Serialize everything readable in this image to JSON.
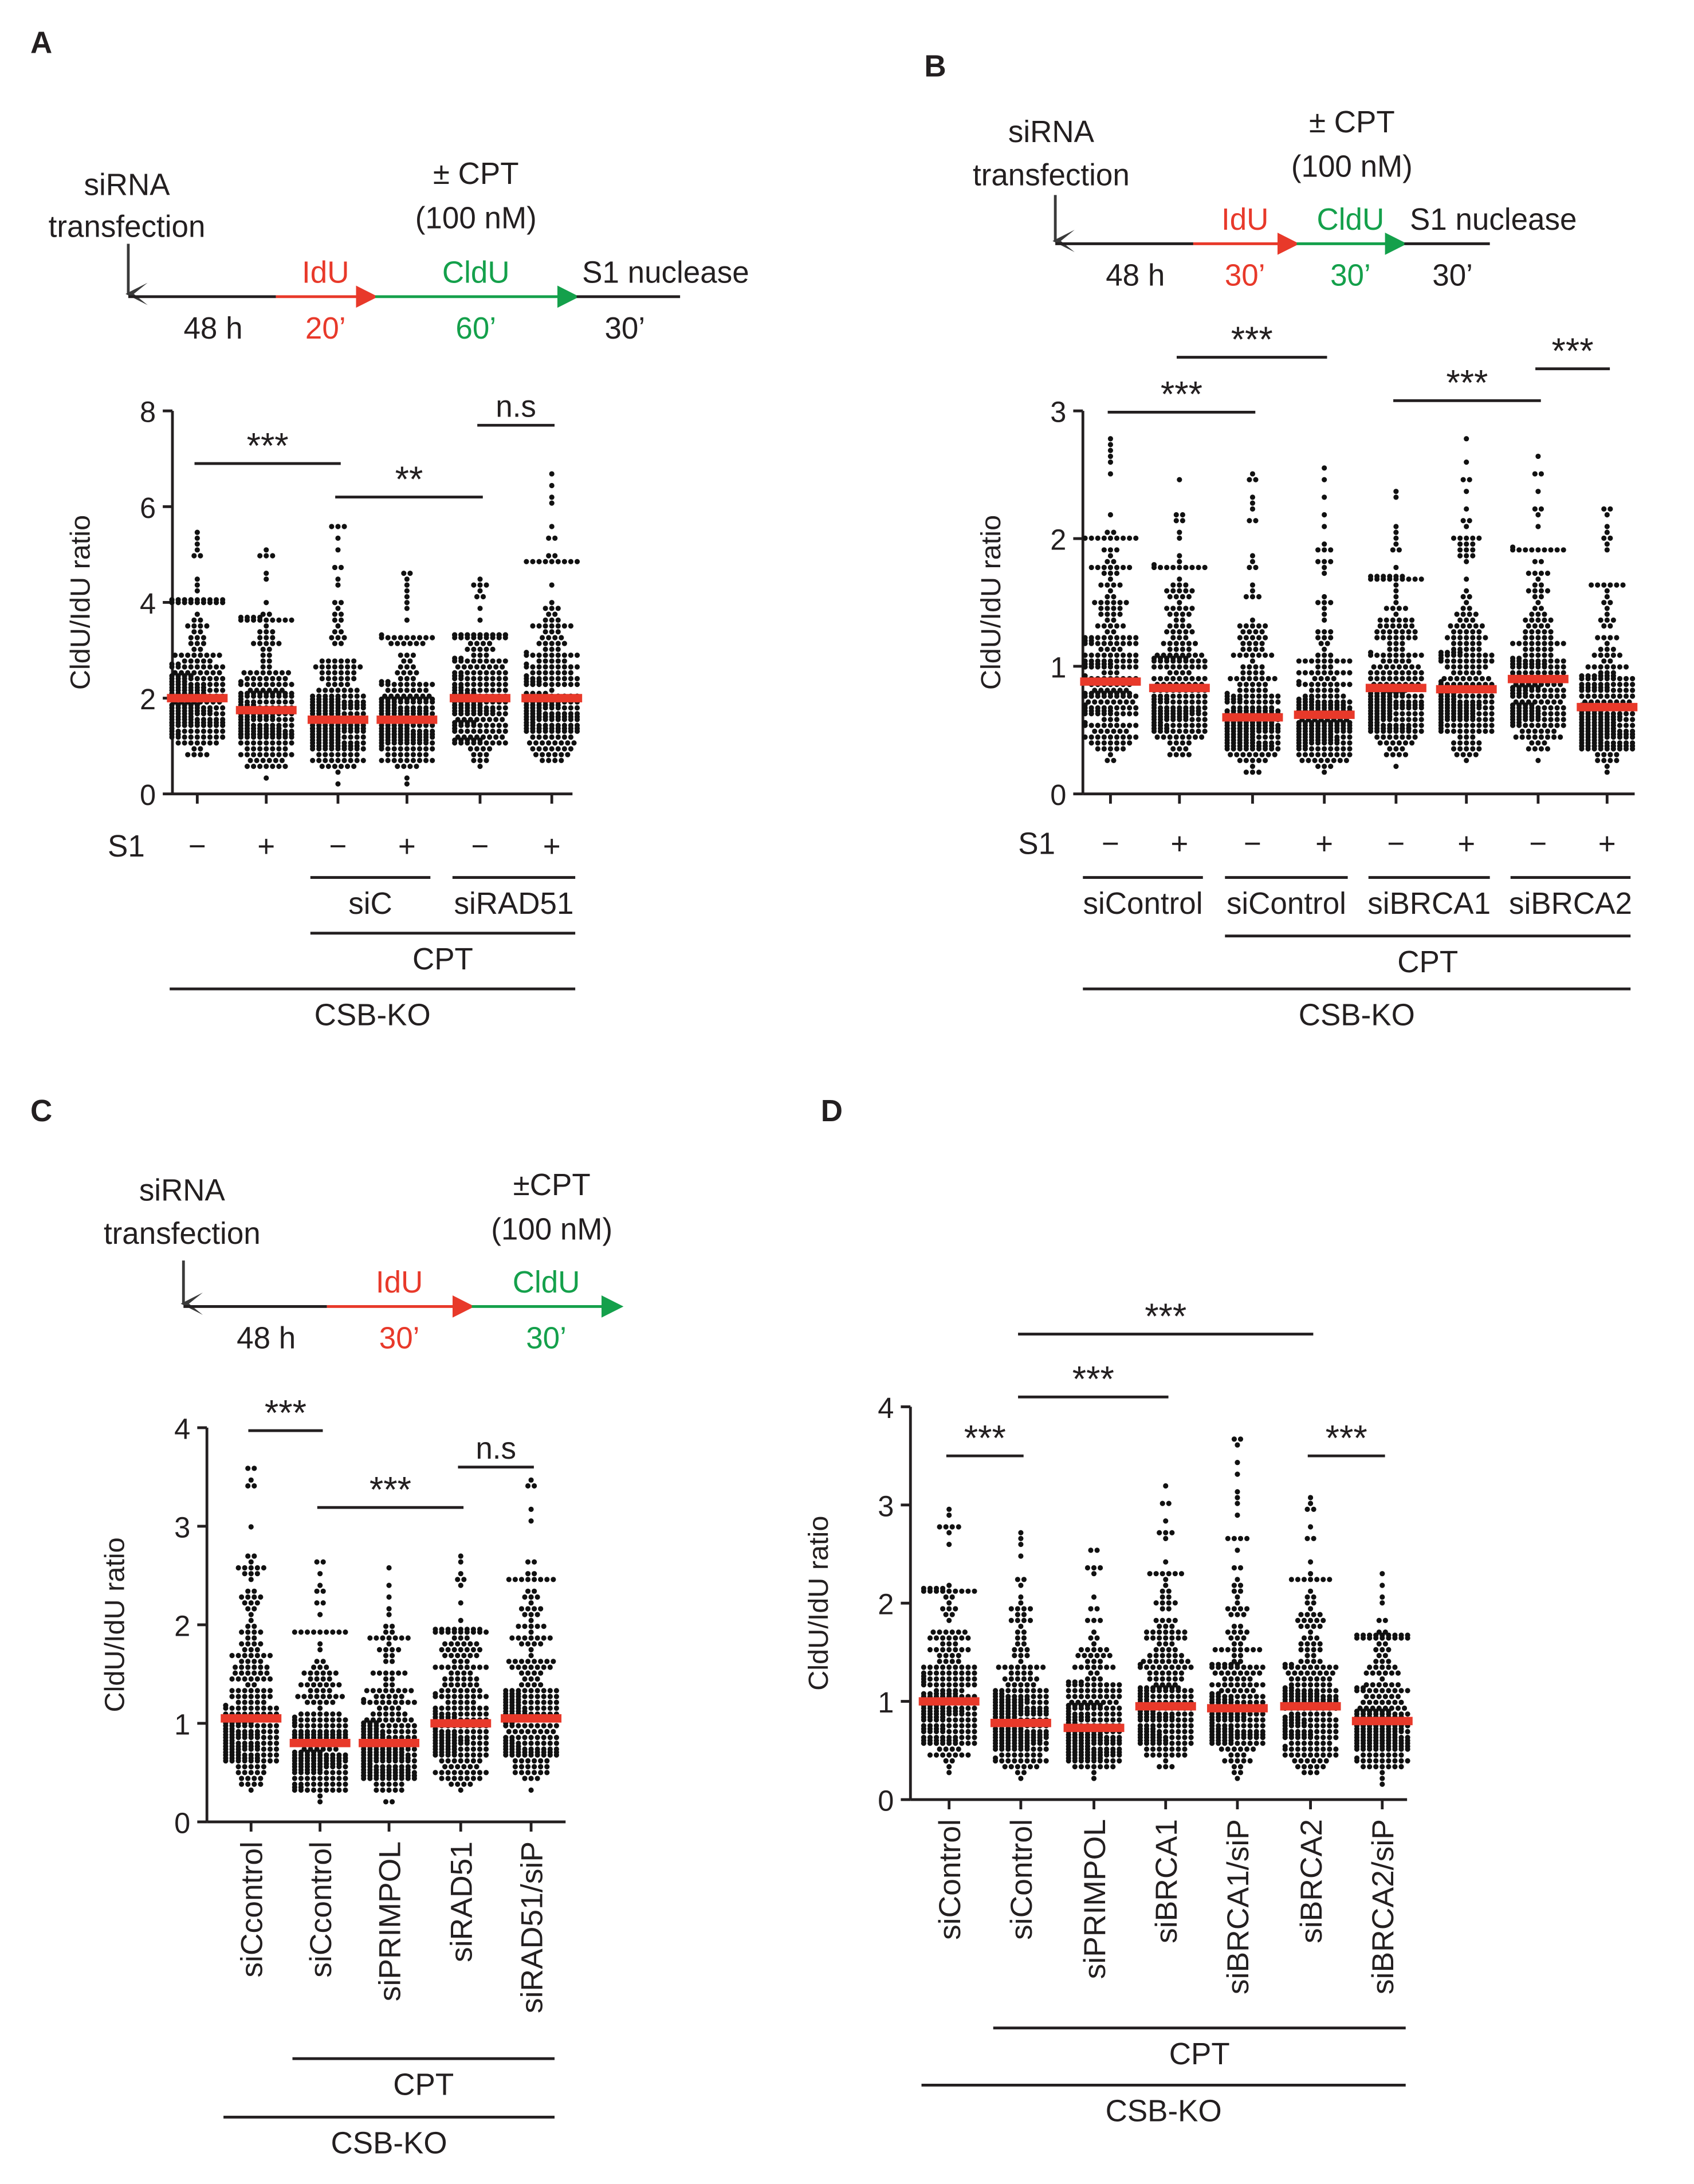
{
  "colors": {
    "idu": "#e8392a",
    "cldu": "#14a04b",
    "median": "#e8392a",
    "dot": "#111111",
    "axis": "#231f20"
  },
  "chart_data": [
    {
      "type": "scatter",
      "panel": "A",
      "ylabel": "CldU/IdU ratio",
      "ylim": [
        0,
        8
      ],
      "yticks": [
        0,
        2,
        4,
        6,
        8
      ],
      "groups": [
        {
          "s1": "−",
          "median": 2.0,
          "max": 5.5,
          "min": 0.25
        },
        {
          "s1": "+",
          "median": 1.75,
          "max": 5.1,
          "min": 0.3
        },
        {
          "s1": "−",
          "median": 1.55,
          "max": 5.6,
          "min": 0.2
        },
        {
          "s1": "+",
          "median": 1.55,
          "max": 4.6,
          "min": 0.2
        },
        {
          "s1": "−",
          "median": 2.0,
          "max": 4.5,
          "min": 0.25
        },
        {
          "s1": "+",
          "median": 2.0,
          "max": 6.7,
          "min": 0.15
        }
      ],
      "row_label": "S1",
      "brackets": [
        {
          "label": "siC",
          "from": 2,
          "to": 3,
          "level": 1
        },
        {
          "label": "siRAD51",
          "from": 4,
          "to": 5,
          "level": 1
        },
        {
          "label": "CPT",
          "from": 2,
          "to": 5,
          "level": 2
        },
        {
          "label": "CSB-KO",
          "from": 0,
          "to": 5,
          "level": 3
        }
      ],
      "significance": [
        {
          "from": 0,
          "to": 2,
          "y": 6.9,
          "label": "***"
        },
        {
          "from": 2,
          "to": 4,
          "y": 6.2,
          "label": "**"
        },
        {
          "from": 4,
          "to": 5,
          "y": 7.7,
          "label": "n.s"
        }
      ],
      "scheme": {
        "start": "siRNA transfection",
        "steps": [
          {
            "top": "",
            "bottom": "48 h",
            "color": "black"
          },
          {
            "top": "IdU",
            "bottom": "20’",
            "color": "red"
          },
          {
            "top": "CldU",
            "bottom": "60’",
            "color": "green"
          },
          {
            "top": "S1 nuclease",
            "bottom": "30’",
            "color": "black"
          }
        ],
        "treatment": "± CPT",
        "dose": "(100 nM)"
      }
    },
    {
      "type": "scatter",
      "panel": "B",
      "ylabel": "CldU/IdU ratio",
      "ylim": [
        0,
        3
      ],
      "yticks": [
        0,
        1,
        2,
        3
      ],
      "groups": [
        {
          "s1": "−",
          "median": 0.88,
          "max": 2.8,
          "min": 0.2
        },
        {
          "s1": "+",
          "median": 0.83,
          "max": 2.45,
          "min": 0.2
        },
        {
          "s1": "−",
          "median": 0.6,
          "max": 2.5,
          "min": 0.15
        },
        {
          "s1": "+",
          "median": 0.62,
          "max": 2.55,
          "min": 0.12
        },
        {
          "s1": "−",
          "median": 0.83,
          "max": 2.35,
          "min": 0.2
        },
        {
          "s1": "+",
          "median": 0.82,
          "max": 2.8,
          "min": 0.2
        },
        {
          "s1": "−",
          "median": 0.9,
          "max": 2.65,
          "min": 0.25
        },
        {
          "s1": "+",
          "median": 0.68,
          "max": 2.25,
          "min": 0.15
        }
      ],
      "row_label": "S1",
      "brackets": [
        {
          "label": "siControl",
          "from": 0,
          "to": 1,
          "level": 1
        },
        {
          "label": "siControl",
          "from": 2,
          "to": 3,
          "level": 1
        },
        {
          "label": "siBRCA1",
          "from": 4,
          "to": 5,
          "level": 1
        },
        {
          "label": "siBRCA2",
          "from": 6,
          "to": 7,
          "level": 1
        },
        {
          "label": "CPT",
          "from": 2,
          "to": 7,
          "level": 2
        },
        {
          "label": "CSB-KO",
          "from": 0,
          "to": 7,
          "level": 3
        }
      ],
      "significance": [
        {
          "from": 0,
          "to": 2,
          "y": 2.99,
          "label": "***"
        },
        {
          "from": 1,
          "to": 3,
          "y": 3.42,
          "label": "***"
        },
        {
          "from": 4,
          "to": 6,
          "y": 3.08,
          "label": "***"
        },
        {
          "from": 6,
          "to": 7,
          "y": 3.33,
          "label": "***"
        }
      ],
      "scheme": {
        "start": "siRNA transfection",
        "steps": [
          {
            "top": "",
            "bottom": "48 h",
            "color": "black"
          },
          {
            "top": "IdU",
            "bottom": "30’",
            "color": "red"
          },
          {
            "top": "CldU",
            "bottom": "30’",
            "color": "green"
          },
          {
            "top": "S1 nuclease",
            "bottom": "30’",
            "color": "black"
          }
        ],
        "treatment": "± CPT",
        "dose": "(100 nM)"
      }
    },
    {
      "type": "scatter",
      "panel": "C",
      "ylabel": "CldU/IdU ratio",
      "ylim": [
        0,
        4
      ],
      "yticks": [
        0,
        1,
        2,
        3,
        4
      ],
      "groups": [
        {
          "label": "siCcontrol",
          "median": 1.05,
          "max": 3.6,
          "min": 0.2
        },
        {
          "label": "siCcontrol",
          "median": 0.8,
          "max": 2.65,
          "min": 0.15
        },
        {
          "label": "siPRIMPOL",
          "median": 0.8,
          "max": 2.6,
          "min": 0.12
        },
        {
          "label": "siRAD51",
          "median": 1.0,
          "max": 2.7,
          "min": 0.2
        },
        {
          "label": "siRAD51/siP",
          "median": 1.05,
          "max": 3.45,
          "min": 0.15
        }
      ],
      "brackets": [
        {
          "label": "CPT",
          "from": 1,
          "to": 4,
          "level": 2
        },
        {
          "label": "CSB-KO",
          "from": 0,
          "to": 4,
          "level": 3
        }
      ],
      "significance": [
        {
          "from": 0,
          "to": 1,
          "y": 3.97,
          "label": "***"
        },
        {
          "from": 1,
          "to": 3,
          "y": 3.19,
          "label": "***"
        },
        {
          "from": 3,
          "to": 4,
          "y": 3.6,
          "label": "n.s"
        }
      ],
      "scheme": {
        "start": "siRNA transfection",
        "steps": [
          {
            "top": "",
            "bottom": "48 h",
            "color": "black"
          },
          {
            "top": "IdU",
            "bottom": "30’",
            "color": "red"
          },
          {
            "top": "CldU",
            "bottom": "30’",
            "color": "green"
          }
        ],
        "treatment": "±CPT",
        "dose": "(100 nM)"
      }
    },
    {
      "type": "scatter",
      "panel": "D",
      "ylabel": "CldU/IdU ratio",
      "ylim": [
        0,
        4
      ],
      "yticks": [
        0,
        1,
        2,
        3,
        4
      ],
      "groups": [
        {
          "label": "siControl",
          "median": 1.0,
          "max": 2.95,
          "min": 0.2
        },
        {
          "label": "siControl",
          "median": 0.78,
          "max": 2.7,
          "min": 0.15
        },
        {
          "label": "siPRIMPOL",
          "median": 0.73,
          "max": 2.55,
          "min": 0.18
        },
        {
          "label": "siBRCA1",
          "median": 0.95,
          "max": 3.2,
          "min": 0.2
        },
        {
          "label": "siBRCA1/siP",
          "median": 0.93,
          "max": 3.7,
          "min": 0.1
        },
        {
          "label": "siBRCA2",
          "median": 0.95,
          "max": 3.1,
          "min": 0.25
        },
        {
          "label": "siBRCA2/siP",
          "median": 0.8,
          "max": 2.3,
          "min": 0.15
        }
      ],
      "brackets": [
        {
          "label": "CPT",
          "from": 1,
          "to": 6,
          "level": 2
        },
        {
          "label": "CSB-KO",
          "from": 0,
          "to": 6,
          "level": 3
        }
      ],
      "significance": [
        {
          "from": 0,
          "to": 1,
          "y": 3.5,
          "label": "***"
        },
        {
          "from": 1,
          "to": 3,
          "y": 4.1,
          "label": "***"
        },
        {
          "from": 1,
          "to": 5,
          "y": 4.74,
          "label": "***"
        },
        {
          "from": 5,
          "to": 6,
          "y": 3.5,
          "label": "***"
        }
      ]
    }
  ]
}
